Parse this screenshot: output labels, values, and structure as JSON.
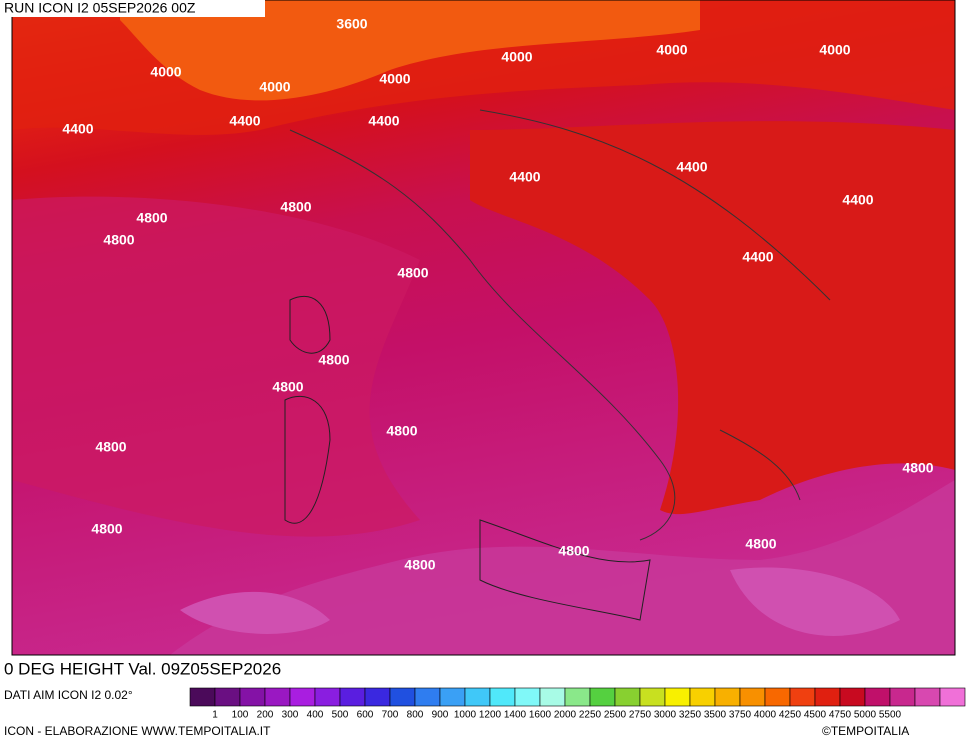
{
  "header": {
    "run": "RUN ICON I2 05SEP2026 00Z"
  },
  "map": {
    "contour_labels": [
      "3600",
      "4000",
      "4000",
      "4000",
      "4000",
      "4000",
      "4000",
      "4400",
      "4400",
      "4400",
      "4400",
      "4400",
      "4400",
      "4400",
      "4800",
      "4800",
      "4800",
      "4800",
      "4800",
      "4800",
      "4800",
      "4800",
      "4800",
      "4800",
      "4800",
      "4800",
      "4800"
    ]
  },
  "footer": {
    "title": "0 DEG HEIGHT Val. 09Z05SEP2026",
    "source": "DATI AIM ICON I2 0.02°",
    "credit": "ICON - ELABORAZIONE WWW.TEMPOITALIA.IT",
    "copyright": "©TEMPOITALIA"
  },
  "legend": {
    "colors": [
      "#4b0a5a",
      "#6a0f82",
      "#8412a6",
      "#9a18c2",
      "#a91ee0",
      "#8a1ee0",
      "#5a1ee0",
      "#3a28e0",
      "#2050e0",
      "#2f7df0",
      "#3aa0f5",
      "#40c8f8",
      "#50e8fa",
      "#80f8f8",
      "#a8fbe6",
      "#8ae88a",
      "#55d040",
      "#88d030",
      "#c8e020",
      "#f8f000",
      "#f8d000",
      "#f8b000",
      "#f89000",
      "#f86800",
      "#f04010",
      "#e02010",
      "#c80a20",
      "#c0106a",
      "#c8288e",
      "#d848b0",
      "#f070d8"
    ],
    "labels": [
      "1",
      "100",
      "200",
      "300",
      "400",
      "500",
      "600",
      "700",
      "800",
      "900",
      "1000",
      "1200",
      "1400",
      "1600",
      "2000",
      "2250",
      "2500",
      "2750",
      "3000",
      "3250",
      "3500",
      "3750",
      "4000",
      "4250",
      "4500",
      "4750",
      "5000",
      "5500"
    ]
  }
}
